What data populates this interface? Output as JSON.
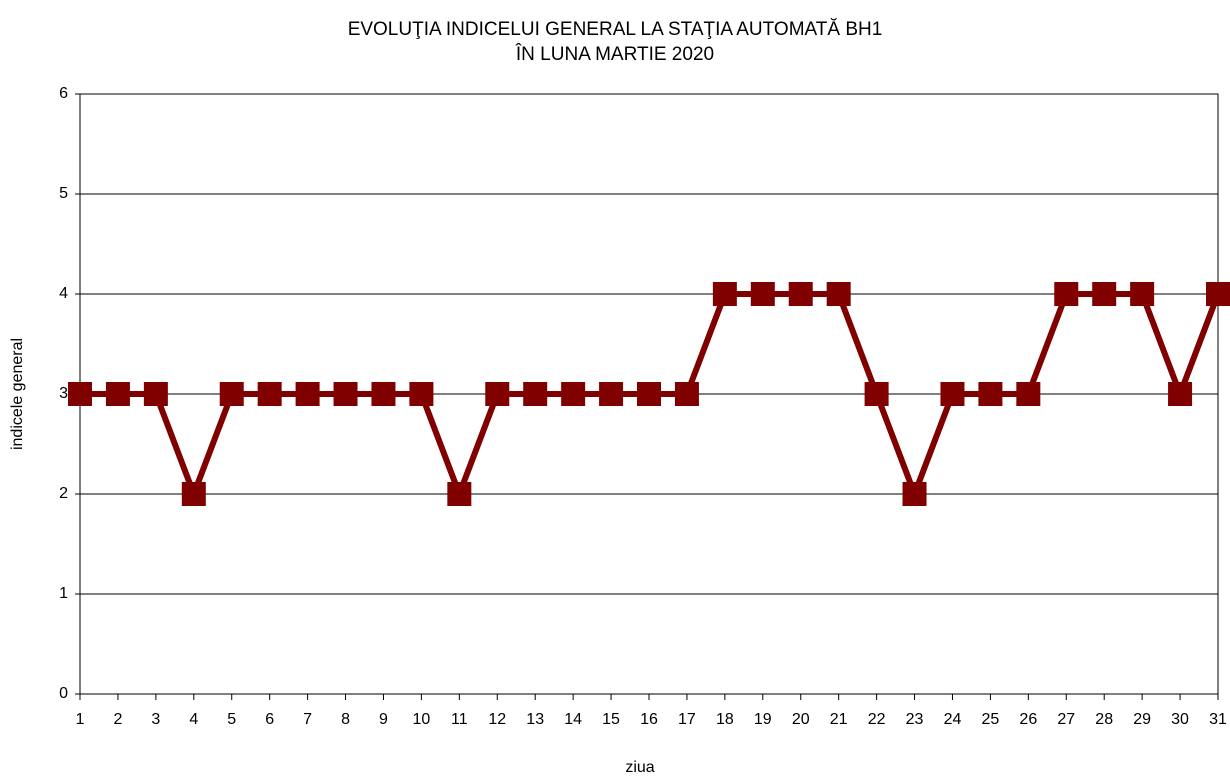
{
  "chart_data": {
    "type": "line",
    "title": [
      "EVOLUŢIA INDICELUI GENERAL LA STAŢIA AUTOMATĂ BH1",
      "ÎN LUNA MARTIE 2020"
    ],
    "x_label": "ziua",
    "y_label": "indicele general",
    "x": [
      1,
      2,
      3,
      4,
      5,
      6,
      7,
      8,
      9,
      10,
      11,
      12,
      13,
      14,
      15,
      16,
      17,
      18,
      19,
      20,
      21,
      22,
      23,
      24,
      25,
      26,
      27,
      28,
      29,
      30,
      31
    ],
    "series": [
      {
        "name": "indicele general",
        "color": "#800000",
        "values": [
          3,
          3,
          3,
          2,
          3,
          3,
          3,
          3,
          3,
          3,
          2,
          3,
          3,
          3,
          3,
          3,
          3,
          4,
          4,
          4,
          4,
          3,
          2,
          3,
          3,
          3,
          4,
          4,
          4,
          3,
          4
        ]
      }
    ],
    "xlim": [
      1,
      31
    ],
    "xticks": [
      1,
      2,
      3,
      4,
      5,
      6,
      7,
      8,
      9,
      10,
      11,
      12,
      13,
      14,
      15,
      16,
      17,
      18,
      19,
      20,
      21,
      22,
      23,
      24,
      25,
      26,
      27,
      28,
      29,
      30,
      31
    ],
    "ylim": [
      0,
      6
    ],
    "yticks": [
      0,
      1,
      2,
      3,
      4,
      5,
      6
    ],
    "grid": true
  }
}
